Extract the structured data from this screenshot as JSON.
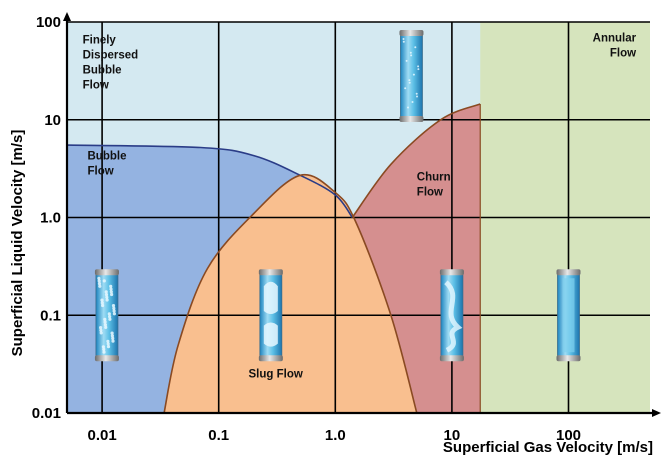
{
  "chart_data": {
    "type": "flow-regime-map",
    "title": "",
    "xlabel": "Superficial  Gas Velocity  [m/s]",
    "ylabel": "Superficial Liquid Velocity  [m/s]",
    "x_scale": "log",
    "y_scale": "log",
    "xlim": [
      0.005,
      500
    ],
    "ylim": [
      0.01,
      100
    ],
    "x_ticks": [
      {
        "value": 0.01,
        "label": "0.01"
      },
      {
        "value": 0.1,
        "label": "0.1"
      },
      {
        "value": 1,
        "label": "1.0"
      },
      {
        "value": 10,
        "label": "10"
      },
      {
        "value": 100,
        "label": "100"
      }
    ],
    "y_ticks": [
      {
        "value": 0.01,
        "label": "0.01"
      },
      {
        "value": 0.1,
        "label": "0.1"
      },
      {
        "value": 1,
        "label": "1.0"
      },
      {
        "value": 10,
        "label": "10"
      },
      {
        "value": 100,
        "label": "100"
      }
    ],
    "grid": true,
    "regions": [
      {
        "name": "Finely Dispersed Bubble Flow",
        "lines": [
          "Finely",
          "Dispersed",
          "Bubble",
          "Flow"
        ],
        "color": "#d4e9f1",
        "label_at": [
          0.0068,
          60
        ]
      },
      {
        "name": "Bubble Flow",
        "lines": [
          "Bubble",
          "Flow"
        ],
        "color": "#94b3e1",
        "label_at": [
          0.0075,
          3.9
        ]
      },
      {
        "name": "Slug Flow",
        "lines": [
          "Slug Flow"
        ],
        "color": "#f9bf8f",
        "label_at": [
          0.18,
          0.023
        ]
      },
      {
        "name": "Churn Flow",
        "lines": [
          "Churn",
          "Flow"
        ],
        "color": "#d58f8f",
        "label_at": [
          5.0,
          2.4
        ]
      },
      {
        "name": "Annular Flow",
        "lines": [
          "Annular",
          "Flow"
        ],
        "color": "#d6e4bd",
        "label_at": [
          380,
          63
        ]
      }
    ],
    "boundaries": [
      {
        "name": "bubble-boundary",
        "color": "#2a3c87",
        "points": [
          [
            0.005,
            5.5
          ],
          [
            0.07,
            5.2
          ],
          [
            0.2,
            4.3
          ],
          [
            0.5,
            2.7
          ],
          [
            1.0,
            1.7
          ],
          [
            1.4,
            1.0
          ]
        ]
      },
      {
        "name": "slug-boundary",
        "color": "#8a4a22",
        "points": [
          [
            0.034,
            0.01
          ],
          [
            0.045,
            0.05
          ],
          [
            0.08,
            0.3
          ],
          [
            0.2,
            1.1
          ],
          [
            0.5,
            2.7
          ],
          [
            1.0,
            1.8
          ],
          [
            1.5,
            0.9
          ],
          [
            3.0,
            0.1
          ],
          [
            5.0,
            0.01
          ]
        ]
      },
      {
        "name": "churn-boundary",
        "color": "#8a4a22",
        "points": [
          [
            1.4,
            1.0
          ],
          [
            3.0,
            3.5
          ],
          [
            8.0,
            10.0
          ],
          [
            17.5,
            14.5
          ]
        ]
      }
    ],
    "annular_transition_x": 17.5,
    "illustrations": [
      {
        "name": "finely-dispersed-tube-icon",
        "at": [
          4.5,
          28
        ],
        "style": "dispersed"
      },
      {
        "name": "bubble-tube-icon",
        "at": [
          0.011,
          0.1
        ],
        "style": "bubbles"
      },
      {
        "name": "slug-tube-icon",
        "at": [
          0.28,
          0.1
        ],
        "style": "slug"
      },
      {
        "name": "churn-tube-icon",
        "at": [
          10,
          0.1
        ],
        "style": "churn"
      },
      {
        "name": "annular-tube-icon",
        "at": [
          100,
          0.1
        ],
        "style": "annular"
      }
    ],
    "colors": {
      "grid": "#000000",
      "bubble_boundary": "#2a3c87",
      "slug_boundary": "#8a4a22"
    }
  }
}
